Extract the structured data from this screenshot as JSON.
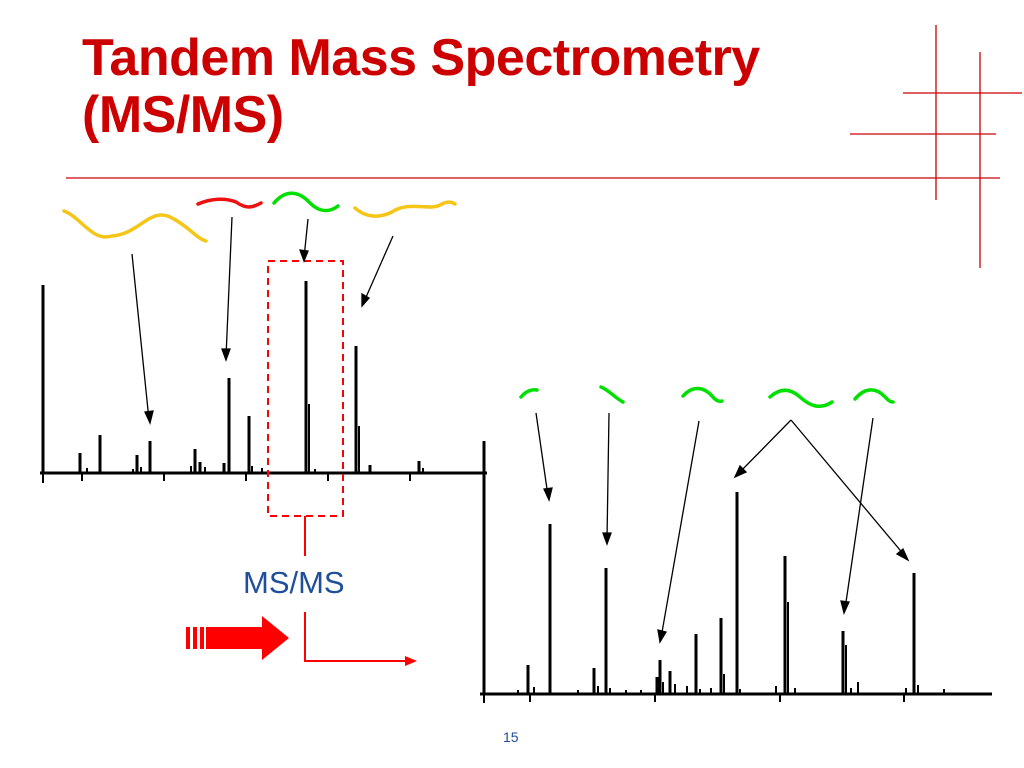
{
  "slide": {
    "title_line1": "Tandem Mass Spectrometry",
    "title_line2": "(MS/MS)",
    "page_number": "15"
  },
  "diagram": {
    "process_label": "MS/MS",
    "colors": {
      "title": "#cc0000",
      "label": "#1f4e9c",
      "accent_red": "#ff0000",
      "peptide_yellow": "#f5c518",
      "peptide_green": "#00e000",
      "peptide_red": "#ee1111",
      "peaks": "#000000"
    },
    "icons": [
      "peptide-wave-icon",
      "selection-box",
      "block-arrow-icon"
    ]
  }
}
